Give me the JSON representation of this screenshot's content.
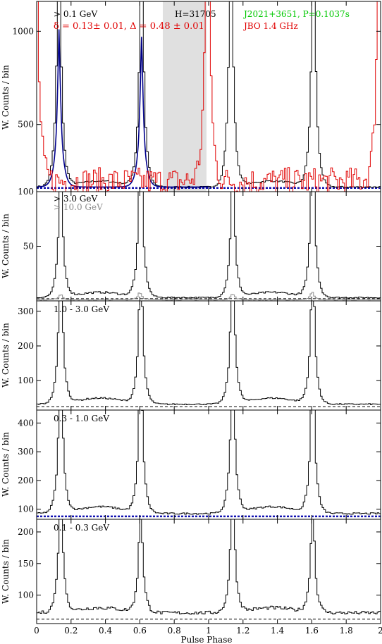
{
  "figure": {
    "xlabel": "Pulse Phase",
    "ylabel": "W. Counts / bin",
    "xlim": [
      0,
      2
    ],
    "xticks": [
      0,
      0.2,
      0.4,
      0.6,
      0.8,
      1,
      1.2,
      1.4,
      1.6,
      1.8,
      2
    ],
    "xtick_labels": [
      "0",
      "0.2",
      "0.4",
      "0.6",
      "0.8",
      "1",
      "1.2",
      "1.4",
      "1.6",
      "1.8",
      "2"
    ]
  },
  "colors": {
    "gamma": "#000000",
    "radio": "#e00000",
    "fit": "#00008b",
    "background": "#1010b0",
    "high_energy": "#8c8c8c",
    "name": "#00c800",
    "shade": "#e0e0e0"
  },
  "chart_data": [
    {
      "type": "line",
      "panel": "top",
      "ylim": [
        140,
        1160
      ],
      "yticks": [
        500,
        1000
      ],
      "title": "",
      "annotations": {
        "energy": "> 0.1 GeV",
        "htest": "H=31705",
        "pulsar": "J2021+3651, P=0.1037s",
        "fit": "δ = 0.13± 0.01, Δ = 0.48 ± 0.01",
        "radio": "JBO 1.4 GHz"
      },
      "shaded_phase": [
        0.73,
        0.99
      ],
      "background_level": 160,
      "series": [
        {
          "peaks": [
            {
              "phase": 0.13,
              "height": 1010
            },
            {
              "phase": 0.61,
              "height": 970
            },
            {
              "phase": 1.13,
              "height": 1010
            },
            {
              "phase": 1.61,
              "height": 970
            }
          ],
          "base": 165,
          "bridge": 40
        },
        {
          "peaks": [
            {
              "phase": 0.13,
              "height": 1010
            },
            {
              "phase": 0.61,
              "height": 970
            }
          ],
          "fit_range": [
            0,
            1
          ],
          "base": 165
        },
        {
          "peaks": [
            {
              "phase": 0.0,
              "height": 890
            },
            {
              "phase": 0.99,
              "height": 920
            },
            {
              "phase": 1.99,
              "height": 890
            }
          ],
          "base": 195,
          "noise": 75
        }
      ]
    },
    {
      "type": "line",
      "panel": "3-10",
      "ylim": [
        0,
        100
      ],
      "yticks": [
        50,
        100
      ],
      "annotations": {
        "energy": "> 3.0 GeV",
        "energy2": "> 10.0 GeV"
      },
      "background_level": 2,
      "series": [
        {
          "peaks": [
            {
              "phase": 0.14,
              "height": 76
            },
            {
              "phase": 0.605,
              "height": 92
            },
            {
              "phase": 1.14,
              "height": 74
            },
            {
              "phase": 1.605,
              "height": 90
            }
          ],
          "base": 3,
          "bridge": 6
        },
        {
          "peaks": [
            {
              "phase": 0.14,
              "height": 4
            },
            {
              "phase": 0.6,
              "height": 5
            },
            {
              "phase": 1.14,
              "height": 4
            },
            {
              "phase": 1.6,
              "height": 5
            }
          ],
          "base": 1
        }
      ]
    },
    {
      "type": "line",
      "panel": "1-3",
      "ylim": [
        15,
        330
      ],
      "yticks": [
        100,
        200,
        300
      ],
      "annotations": {
        "energy": "1.0 - 3.0 GeV"
      },
      "background_level": 25,
      "series": [
        {
          "peaks": [
            {
              "phase": 0.14,
              "height": 300
            },
            {
              "phase": 0.605,
              "height": 285
            },
            {
              "phase": 1.14,
              "height": 298
            },
            {
              "phase": 1.605,
              "height": 283
            }
          ],
          "base": 32,
          "bridge": 22
        }
      ]
    },
    {
      "type": "line",
      "panel": "0.3-1",
      "ylim": [
        65,
        445
      ],
      "yticks": [
        100,
        200,
        300,
        400
      ],
      "annotations": {
        "energy": "0.3 - 1.0 GeV"
      },
      "background_level": 75,
      "series": [
        {
          "peaks": [
            {
              "phase": 0.14,
              "height": 425
            },
            {
              "phase": 0.605,
              "height": 415
            },
            {
              "phase": 1.14,
              "height": 425
            },
            {
              "phase": 1.605,
              "height": 415
            }
          ],
          "base": 85,
          "bridge": 30
        }
      ]
    },
    {
      "type": "line",
      "panel": "0.1-0.3",
      "ylim": [
        55,
        220
      ],
      "yticks": [
        100,
        150,
        200
      ],
      "annotations": {
        "energy": "0.1 - 0.3 GeV"
      },
      "background_level": 62,
      "series": [
        {
          "peaks": [
            {
              "phase": 0.14,
              "height": 200
            },
            {
              "phase": 0.605,
              "height": 175
            },
            {
              "phase": 1.14,
              "height": 200
            },
            {
              "phase": 1.605,
              "height": 175
            }
          ],
          "base": 72,
          "bridge": 10
        }
      ]
    }
  ]
}
